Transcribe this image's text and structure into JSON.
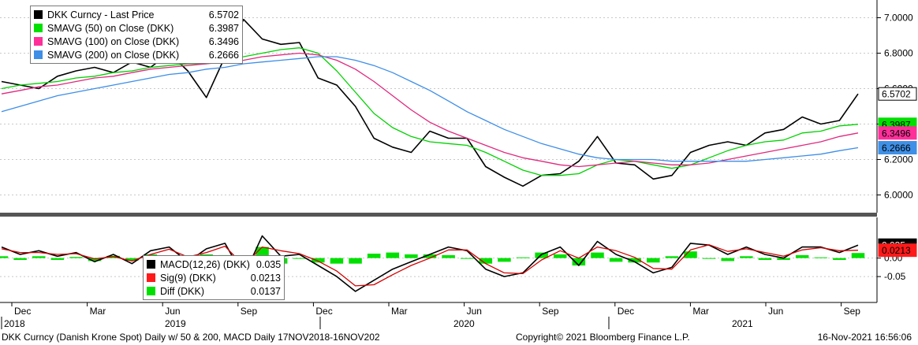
{
  "chart_data": [
    {
      "type": "line",
      "title": "",
      "ylim": [
        5.9,
        7.1
      ],
      "y_ticks": [
        "7.0000",
        "6.8000",
        "6.6000",
        "6.4000",
        "6.2000",
        "6.0000"
      ],
      "y_tick_values": [
        7.0,
        6.8,
        6.6,
        6.4,
        6.2,
        6.0
      ],
      "grid": true,
      "legend_position": "top-left",
      "series": [
        {
          "name": "DKK Curncy - Last Price",
          "legend_value": "6.5702",
          "color": "#000000",
          "tag": "6.5702",
          "tag_bg": "#ffffff",
          "tag_fg": "#000000",
          "values": [
            6.64,
            6.62,
            6.6,
            6.67,
            6.7,
            6.72,
            6.69,
            6.75,
            6.72,
            6.8,
            6.7,
            6.55,
            6.78,
            6.99,
            6.88,
            6.85,
            6.86,
            6.66,
            6.62,
            6.5,
            6.32,
            6.27,
            6.24,
            6.36,
            6.32,
            6.32,
            6.16,
            6.1,
            6.05,
            6.11,
            6.12,
            6.19,
            6.33,
            6.18,
            6.17,
            6.09,
            6.11,
            6.24,
            6.28,
            6.3,
            6.28,
            6.35,
            6.37,
            6.44,
            6.4,
            6.42,
            6.5702
          ]
        },
        {
          "name": "SMAVG (50)  on Close (DKK)",
          "legend_value": "6.3987",
          "color": "#00d200",
          "tag": "6.3987",
          "tag_bg": "#00e000",
          "tag_fg": "#000000",
          "values": [
            6.6,
            6.62,
            6.63,
            6.64,
            6.66,
            6.67,
            6.69,
            6.7,
            6.72,
            6.73,
            6.74,
            6.74,
            6.76,
            6.78,
            6.8,
            6.82,
            6.83,
            6.8,
            6.7,
            6.58,
            6.46,
            6.38,
            6.33,
            6.3,
            6.29,
            6.28,
            6.24,
            6.19,
            6.14,
            6.11,
            6.11,
            6.12,
            6.17,
            6.2,
            6.19,
            6.17,
            6.15,
            6.17,
            6.21,
            6.25,
            6.28,
            6.3,
            6.31,
            6.35,
            6.36,
            6.39,
            6.3987
          ]
        },
        {
          "name": "SMAVG (100)  on Close (DKK)",
          "legend_value": "6.3496",
          "color": "#e0297f",
          "tag": "6.3496",
          "tag_bg": "#ff2f9a",
          "tag_fg": "#000000",
          "values": [
            6.57,
            6.59,
            6.61,
            6.62,
            6.64,
            6.66,
            6.67,
            6.69,
            6.71,
            6.72,
            6.73,
            6.74,
            6.75,
            6.76,
            6.78,
            6.79,
            6.8,
            6.79,
            6.76,
            6.71,
            6.64,
            6.56,
            6.48,
            6.41,
            6.36,
            6.32,
            6.28,
            6.24,
            6.21,
            6.19,
            6.17,
            6.16,
            6.17,
            6.18,
            6.19,
            6.18,
            6.17,
            6.17,
            6.18,
            6.2,
            6.22,
            6.24,
            6.26,
            6.28,
            6.3,
            6.33,
            6.3496
          ]
        },
        {
          "name": "SMAVG (200)  on Close (DKK)",
          "legend_value": "6.2666",
          "color": "#3d8ee8",
          "tag": "6.2666",
          "tag_bg": "#3f8fe6",
          "tag_fg": "#000000",
          "values": [
            6.47,
            6.5,
            6.53,
            6.56,
            6.58,
            6.6,
            6.62,
            6.64,
            6.66,
            6.68,
            6.69,
            6.71,
            6.72,
            6.74,
            6.75,
            6.76,
            6.77,
            6.78,
            6.78,
            6.76,
            6.73,
            6.69,
            6.64,
            6.59,
            6.53,
            6.47,
            6.42,
            6.37,
            6.33,
            6.29,
            6.26,
            6.23,
            6.21,
            6.2,
            6.2,
            6.2,
            6.19,
            6.19,
            6.19,
            6.19,
            6.19,
            6.2,
            6.21,
            6.22,
            6.23,
            6.25,
            6.2666
          ]
        }
      ]
    },
    {
      "type": "line",
      "title": "",
      "ylim": [
        -0.12,
        0.11
      ],
      "y_ticks": [
        "0.00",
        "-0.05"
      ],
      "y_tick_values": [
        0.0,
        -0.05
      ],
      "grid": true,
      "legend_position": "bottom-left",
      "series": [
        {
          "name": "MACD(12,26) (DKK)",
          "legend_value": "0.035",
          "color": "#000000",
          "tag": "0.035",
          "tag_bg": "#000000",
          "tag_fg": "#ffffff",
          "values": [
            0.03,
            0.01,
            0.02,
            0.005,
            0.015,
            -0.01,
            0.01,
            -0.015,
            0.02,
            0.03,
            -0.01,
            0.025,
            0.04,
            -0.05,
            0.06,
            0.005,
            0.01,
            -0.02,
            -0.05,
            -0.09,
            -0.06,
            -0.03,
            -0.01,
            0.01,
            0.03,
            0.02,
            -0.03,
            -0.05,
            -0.04,
            0.01,
            0.03,
            -0.02,
            0.045,
            0.01,
            -0.01,
            -0.04,
            -0.025,
            0.04,
            0.035,
            0.01,
            0.03,
            0.01,
            0.0,
            0.03,
            0.03,
            0.015,
            0.035
          ]
        },
        {
          "name": "Sig(9) (DKK)",
          "legend_value": "0.0213",
          "color": "#d40000",
          "tag": "0.0213",
          "tag_bg": "#ff1a1a",
          "tag_fg": "#000000",
          "values": [
            0.025,
            0.015,
            0.015,
            0.01,
            0.012,
            -0.002,
            0.004,
            -0.008,
            0.01,
            0.024,
            0.003,
            0.015,
            0.032,
            -0.02,
            0.03,
            0.02,
            0.012,
            -0.008,
            -0.035,
            -0.075,
            -0.072,
            -0.045,
            -0.02,
            0.0,
            0.022,
            0.022,
            -0.015,
            -0.04,
            -0.042,
            -0.005,
            0.02,
            0.0,
            0.03,
            0.02,
            0.002,
            -0.028,
            -0.03,
            0.022,
            0.036,
            0.018,
            0.025,
            0.015,
            0.005,
            0.022,
            0.028,
            0.02,
            0.0213
          ]
        },
        {
          "name": "Diff (DKK)",
          "legend_value": "0.0137",
          "color": "#00e000",
          "values": [
            0.005,
            -0.005,
            0.005,
            -0.005,
            0.003,
            -0.008,
            0.006,
            -0.007,
            0.01,
            0.006,
            -0.013,
            0.01,
            0.008,
            -0.03,
            0.03,
            -0.015,
            -0.002,
            -0.012,
            -0.015,
            -0.015,
            0.012,
            0.015,
            0.01,
            0.01,
            0.008,
            -0.002,
            -0.015,
            -0.01,
            0.002,
            0.015,
            0.01,
            -0.02,
            0.015,
            -0.01,
            -0.012,
            -0.012,
            0.005,
            0.018,
            -0.001,
            -0.008,
            0.005,
            -0.005,
            -0.005,
            0.008,
            0.002,
            -0.005,
            0.0137
          ]
        }
      ]
    }
  ],
  "x_axis": {
    "month_labels": [
      "Dec",
      "Mar",
      "Jun",
      "Sep",
      "Dec",
      "Mar",
      "Jun",
      "Sep",
      "Dec",
      "Mar",
      "Jun",
      "Sep"
    ],
    "year_labels": [
      "2018",
      "2019",
      "2020",
      "2021"
    ]
  },
  "footer": {
    "left": "DKK Curncy (Danish Krone Spot) Daily w/ 50 & 200, MACD  Daily 17NOV2018-16NOV202",
    "center": "Copyright© 2021 Bloomberg Finance L.P.",
    "right": "16-Nov-2021 16:56:06"
  }
}
